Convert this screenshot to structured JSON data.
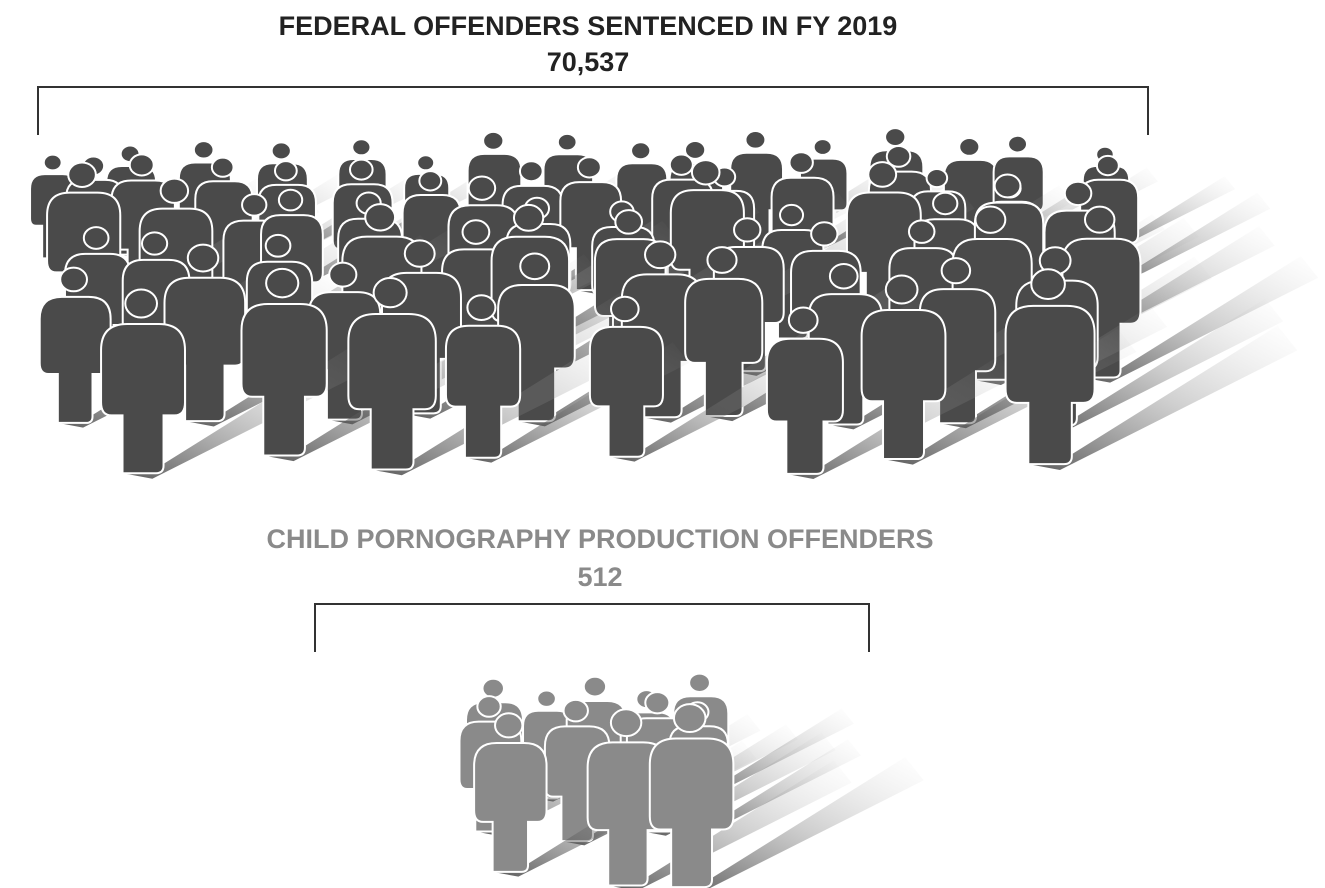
{
  "groups": [
    {
      "title": "FEDERAL OFFENDERS SENTENCED IN FY 2019",
      "count": "70,537"
    },
    {
      "title": "CHILD PORNOGRAPHY PRODUCTION OFFENDERS",
      "count": "512"
    }
  ]
}
